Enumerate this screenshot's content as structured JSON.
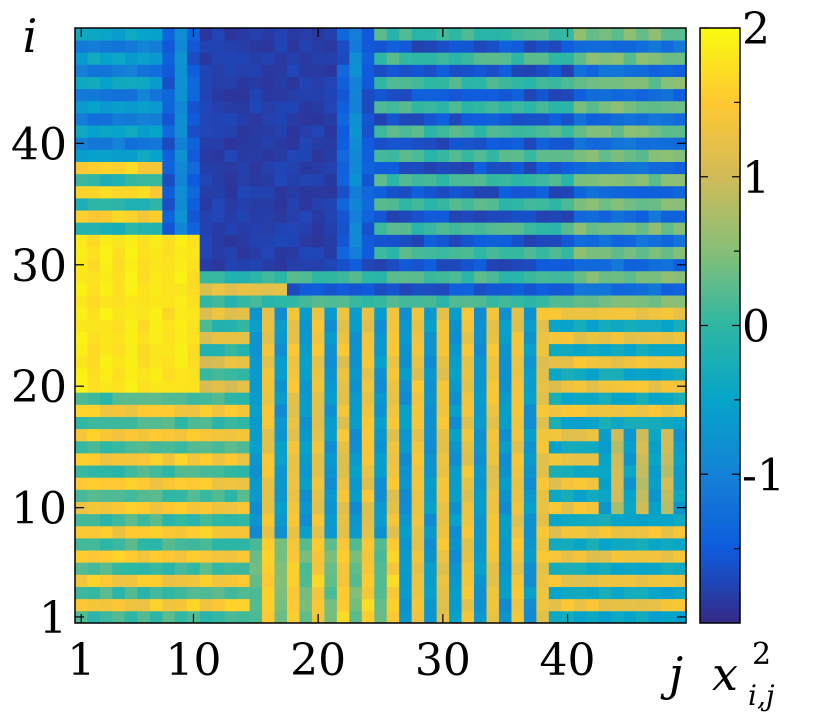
{
  "chart_data": {
    "type": "heatmap",
    "title": "",
    "xlabel": "j",
    "ylabel": "i",
    "colorbar_label_base": "x",
    "colorbar_label_sup": "2",
    "colorbar_label_sub": "i,j",
    "x_range": [
      1,
      49
    ],
    "y_range": [
      1,
      49
    ],
    "x_ticks": [
      1,
      10,
      20,
      30,
      40
    ],
    "y_ticks": [
      1,
      10,
      20,
      30,
      40
    ],
    "colorbar_range": [
      -2,
      2
    ],
    "colorbar_ticks": [
      2,
      1,
      0,
      -1
    ],
    "colormap": "parula",
    "colormap_stops": [
      "#352a87",
      "#0f5cdd",
      "#1481d6",
      "#06a4ca",
      "#2eb7a4",
      "#87bf77",
      "#d1bb59",
      "#fec832",
      "#f9fb0e"
    ],
    "grid": false,
    "regions": [
      {
        "name": "bottom-left warm block",
        "i_range": [
          1,
          30
        ],
        "j_range": [
          1,
          49
        ],
        "approx_value": 1.5
      },
      {
        "name": "bright yellow block",
        "i_range": [
          20,
          32
        ],
        "j_range": [
          1,
          10
        ],
        "approx_value": 1.9
      },
      {
        "name": "upper-left dark band",
        "i_range": [
          30,
          49
        ],
        "j_range": [
          10,
          25
        ],
        "approx_value": -1.8
      },
      {
        "name": "upper-right striped region",
        "i_range": [
          28,
          49
        ],
        "j_range": [
          20,
          49
        ],
        "approx_value": -0.8
      },
      {
        "name": "lower-right mixed region",
        "i_range": [
          1,
          28
        ],
        "j_range": [
          25,
          49
        ],
        "approx_value": 0.6
      }
    ]
  }
}
